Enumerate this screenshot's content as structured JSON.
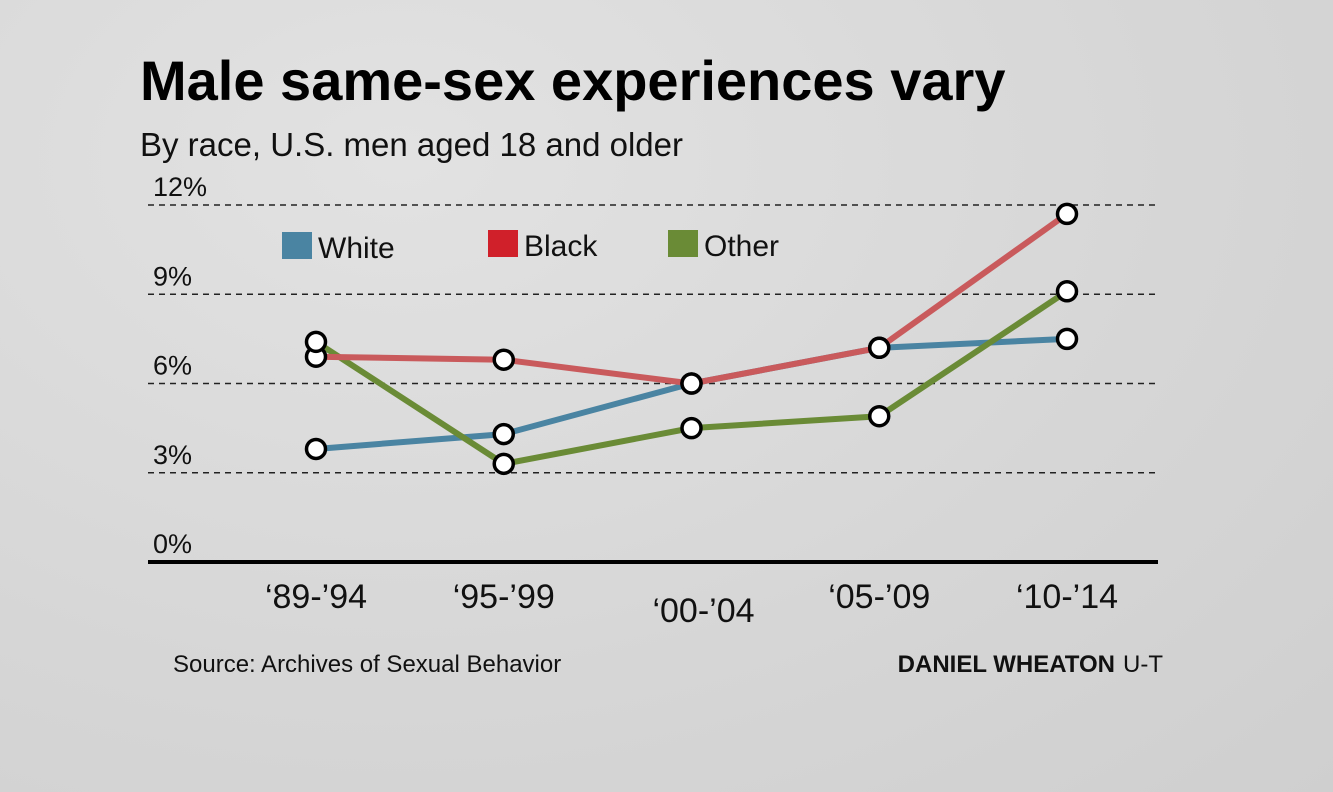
{
  "colors": {
    "white_series": "#4a84a2",
    "black_series": "#c95a5c",
    "other_series": "#6a8b36",
    "legend_black_swatch": "#d0202a",
    "text": "#111111",
    "gridline": "#222222",
    "marker_fill": "#ffffff",
    "marker_stroke": "#000000"
  },
  "footer": {
    "source": "Source: Archives of Sexual Behavior",
    "credit_name": "DANIEL WHEATON",
    "credit_org": "U-T"
  },
  "chart_data": {
    "type": "line",
    "title": "Male same-sex experiences vary",
    "subtitle": "By race, U.S. men aged 18 and older",
    "xlabel": "",
    "ylabel": "",
    "categories": [
      "‘89-’94",
      "‘95-’99",
      "‘00-’04",
      "‘05-’09",
      "‘10-’14"
    ],
    "y_ticks": [
      0,
      3,
      6,
      9,
      12
    ],
    "y_tick_labels": [
      "0%",
      "3%",
      "6%",
      "9%",
      "12%"
    ],
    "ylim": [
      0,
      12
    ],
    "grid": "dashed horizontal",
    "legend_position": "top-left",
    "series": [
      {
        "name": "White",
        "color_key": "white_series",
        "values": [
          3.8,
          4.3,
          6.0,
          7.2,
          7.5
        ]
      },
      {
        "name": "Black",
        "color_key": "black_series",
        "values": [
          6.9,
          6.8,
          6.0,
          7.2,
          11.7
        ]
      },
      {
        "name": "Other",
        "color_key": "other_series",
        "values": [
          7.4,
          3.3,
          4.5,
          4.9,
          9.1
        ]
      }
    ]
  }
}
